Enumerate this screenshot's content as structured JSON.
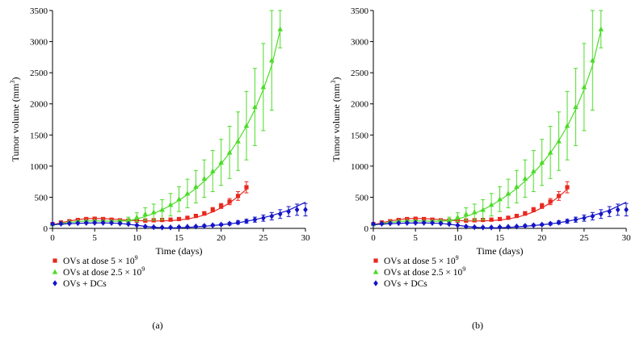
{
  "chart_data": [
    {
      "type": "scatter",
      "panel_label": "(a)",
      "xlabel": "Time (days)",
      "ylabel": "Tumor volume (mm",
      "ylabel_sup": "3",
      "ylabel_close": ")",
      "xlim": [
        0,
        30
      ],
      "ylim": [
        0,
        3500
      ],
      "xticks": [
        "0",
        "5",
        "10",
        "15",
        "20",
        "25",
        "30"
      ],
      "yticks": [
        "0",
        "500",
        "1000",
        "1500",
        "2000",
        "2500",
        "3000",
        "3500"
      ],
      "grid": false,
      "legend_position": "bottom-left",
      "series": [
        {
          "name": "OVs at dose 5 × 10",
          "name_sup": "9",
          "color": "#e8281e",
          "marker": "square",
          "x": [
            0,
            1,
            2,
            3,
            4,
            5,
            6,
            7,
            8,
            9,
            10,
            11,
            12,
            13,
            14,
            15,
            16,
            17,
            18,
            19,
            20,
            21,
            22,
            23
          ],
          "y": [
            70,
            95,
            115,
            135,
            150,
            155,
            150,
            140,
            130,
            125,
            125,
            125,
            130,
            135,
            140,
            150,
            170,
            200,
            240,
            300,
            360,
            430,
            520,
            660
          ],
          "err": [
            10,
            10,
            12,
            12,
            14,
            15,
            15,
            15,
            15,
            15,
            15,
            15,
            15,
            15,
            18,
            20,
            22,
            25,
            30,
            35,
            40,
            50,
            70,
            90
          ],
          "fit_x": [
            0,
            1,
            2,
            3,
            4,
            5,
            6,
            7,
            8,
            9,
            10,
            11,
            12,
            13,
            14,
            15,
            16,
            17,
            18,
            19,
            20,
            21,
            22,
            23
          ],
          "fit_y": [
            60,
            90,
            118,
            140,
            155,
            160,
            158,
            150,
            140,
            130,
            124,
            120,
            118,
            120,
            125,
            135,
            152,
            178,
            215,
            265,
            330,
            410,
            510,
            630
          ]
        },
        {
          "name": "OVs at dose 2.5 × 10",
          "name_sup": "9",
          "color": "#4cdc28",
          "marker": "triangle",
          "x": [
            0,
            1,
            2,
            3,
            4,
            5,
            6,
            7,
            8,
            9,
            10,
            11,
            12,
            13,
            14,
            15,
            16,
            17,
            18,
            19,
            20,
            21,
            22,
            23,
            24,
            25,
            26,
            27
          ],
          "y": [
            70,
            85,
            100,
            110,
            115,
            115,
            110,
            110,
            115,
            140,
            180,
            230,
            260,
            300,
            380,
            470,
            560,
            670,
            800,
            920,
            1060,
            1220,
            1400,
            1650,
            1950,
            2270,
            2700,
            3200
          ],
          "err": [
            10,
            10,
            12,
            12,
            12,
            12,
            12,
            15,
            20,
            40,
            70,
            100,
            130,
            160,
            180,
            200,
            230,
            260,
            300,
            330,
            370,
            420,
            470,
            550,
            620,
            700,
            800,
            300
          ],
          "fit_x": [
            0,
            1,
            2,
            3,
            4,
            5,
            6,
            7,
            8,
            9,
            10,
            11,
            12,
            13,
            14,
            15,
            16,
            17,
            18,
            19,
            20,
            21,
            22,
            23,
            24,
            25,
            26,
            27
          ],
          "fit_y": [
            50,
            75,
            95,
            110,
            118,
            120,
            118,
            115,
            115,
            125,
            150,
            190,
            240,
            300,
            370,
            450,
            540,
            640,
            760,
            890,
            1040,
            1210,
            1410,
            1640,
            1910,
            2230,
            2620,
            3180
          ]
        },
        {
          "name": "OVs + DCs",
          "name_sup": "",
          "color": "#1414c8",
          "marker": "diamond",
          "x": [
            0,
            1,
            2,
            3,
            4,
            5,
            6,
            7,
            8,
            9,
            10,
            11,
            12,
            13,
            14,
            15,
            16,
            17,
            18,
            19,
            20,
            21,
            22,
            23,
            24,
            25,
            26,
            27,
            28,
            29,
            30
          ],
          "y": [
            70,
            75,
            80,
            85,
            88,
            90,
            90,
            88,
            80,
            70,
            50,
            30,
            20,
            15,
            15,
            20,
            25,
            30,
            40,
            50,
            60,
            75,
            95,
            115,
            140,
            165,
            195,
            230,
            270,
            300,
            300
          ],
          "err": [
            10,
            10,
            10,
            10,
            10,
            10,
            10,
            10,
            10,
            10,
            10,
            10,
            10,
            10,
            10,
            10,
            10,
            10,
            15,
            15,
            15,
            20,
            25,
            30,
            40,
            50,
            60,
            70,
            80,
            90,
            100
          ],
          "fit_x": [
            0,
            2,
            4,
            6,
            8,
            10,
            11,
            12,
            13,
            14,
            15,
            16,
            17,
            18,
            20,
            22,
            24,
            26,
            28,
            30
          ],
          "fit_y": [
            60,
            75,
            85,
            88,
            80,
            50,
            32,
            18,
            10,
            8,
            10,
            16,
            24,
            34,
            58,
            90,
            140,
            205,
            290,
            420
          ]
        }
      ]
    },
    {
      "type": "scatter",
      "panel_label": "(b)",
      "xlabel": "Time (days)",
      "ylabel": "Tumor volume (mm",
      "ylabel_sup": "3",
      "ylabel_close": ")",
      "xlim": [
        0,
        30
      ],
      "ylim": [
        0,
        3500
      ],
      "xticks": [
        "0",
        "5",
        "10",
        "15",
        "20",
        "25",
        "30"
      ],
      "yticks": [
        "0",
        "500",
        "1000",
        "1500",
        "2000",
        "2500",
        "3000",
        "3500"
      ],
      "grid": false,
      "legend_position": "bottom-left",
      "series": [
        {
          "name": "OVs at dose 5 × 10",
          "name_sup": "9",
          "color": "#e8281e",
          "marker": "square",
          "x": [
            0,
            1,
            2,
            3,
            4,
            5,
            6,
            7,
            8,
            9,
            10,
            11,
            12,
            13,
            14,
            15,
            16,
            17,
            18,
            19,
            20,
            21,
            22,
            23
          ],
          "y": [
            70,
            95,
            115,
            135,
            150,
            155,
            150,
            140,
            130,
            125,
            125,
            125,
            130,
            135,
            140,
            150,
            170,
            200,
            240,
            300,
            360,
            430,
            520,
            660
          ],
          "err": [
            10,
            10,
            12,
            12,
            14,
            15,
            15,
            15,
            15,
            15,
            15,
            15,
            15,
            15,
            18,
            20,
            22,
            25,
            30,
            35,
            40,
            50,
            70,
            90
          ],
          "fit_x": [
            0,
            1,
            2,
            3,
            4,
            5,
            6,
            7,
            8,
            9,
            10,
            11,
            12,
            13,
            14,
            15,
            16,
            17,
            18,
            19,
            20,
            21,
            22,
            23
          ],
          "fit_y": [
            60,
            90,
            118,
            140,
            155,
            160,
            158,
            150,
            140,
            130,
            124,
            120,
            118,
            120,
            125,
            135,
            152,
            178,
            215,
            265,
            330,
            410,
            510,
            630
          ]
        },
        {
          "name": "OVs at dose 2.5 × 10",
          "name_sup": "9",
          "color": "#4cdc28",
          "marker": "triangle",
          "x": [
            0,
            1,
            2,
            3,
            4,
            5,
            6,
            7,
            8,
            9,
            10,
            11,
            12,
            13,
            14,
            15,
            16,
            17,
            18,
            19,
            20,
            21,
            22,
            23,
            24,
            25,
            26,
            27
          ],
          "y": [
            70,
            85,
            100,
            110,
            115,
            115,
            110,
            110,
            115,
            140,
            180,
            230,
            260,
            300,
            380,
            470,
            560,
            670,
            800,
            920,
            1060,
            1220,
            1400,
            1650,
            1950,
            2270,
            2700,
            3200
          ],
          "err": [
            10,
            10,
            12,
            12,
            12,
            12,
            12,
            15,
            20,
            40,
            70,
            100,
            130,
            160,
            180,
            200,
            230,
            260,
            300,
            330,
            370,
            420,
            470,
            550,
            620,
            700,
            800,
            300
          ],
          "fit_x": [
            0,
            1,
            2,
            3,
            4,
            5,
            6,
            7,
            8,
            9,
            10,
            11,
            12,
            13,
            14,
            15,
            16,
            17,
            18,
            19,
            20,
            21,
            22,
            23,
            24,
            25,
            26,
            27
          ],
          "fit_y": [
            50,
            75,
            95,
            110,
            118,
            120,
            118,
            115,
            115,
            125,
            150,
            190,
            240,
            300,
            370,
            450,
            540,
            640,
            760,
            890,
            1040,
            1210,
            1410,
            1640,
            1910,
            2230,
            2620,
            3180
          ]
        },
        {
          "name": "OVs + DCs",
          "name_sup": "",
          "color": "#1414c8",
          "marker": "diamond",
          "x": [
            0,
            1,
            2,
            3,
            4,
            5,
            6,
            7,
            8,
            9,
            10,
            11,
            12,
            13,
            14,
            15,
            16,
            17,
            18,
            19,
            20,
            21,
            22,
            23,
            24,
            25,
            26,
            27,
            28,
            29,
            30
          ],
          "y": [
            70,
            75,
            80,
            85,
            88,
            90,
            90,
            88,
            80,
            70,
            50,
            30,
            20,
            15,
            15,
            20,
            25,
            30,
            40,
            50,
            60,
            75,
            95,
            115,
            140,
            165,
            195,
            230,
            270,
            300,
            300
          ],
          "err": [
            10,
            10,
            10,
            10,
            10,
            10,
            10,
            10,
            10,
            10,
            10,
            10,
            10,
            10,
            10,
            10,
            10,
            10,
            15,
            15,
            15,
            20,
            25,
            30,
            40,
            50,
            60,
            70,
            80,
            90,
            100
          ],
          "fit_x": [
            0,
            2,
            4,
            6,
            8,
            10,
            11,
            12,
            13,
            14,
            15,
            16,
            17,
            18,
            20,
            22,
            24,
            26,
            28,
            30
          ],
          "fit_y": [
            60,
            75,
            85,
            88,
            80,
            50,
            32,
            18,
            10,
            8,
            10,
            16,
            24,
            34,
            58,
            90,
            140,
            205,
            290,
            420
          ]
        }
      ]
    }
  ]
}
